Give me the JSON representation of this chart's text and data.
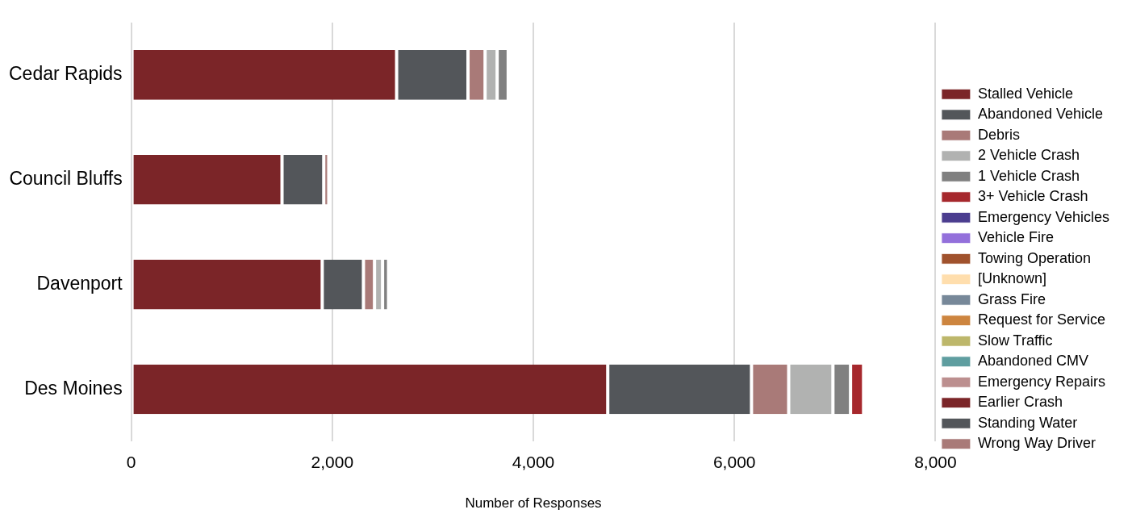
{
  "chart_data": {
    "type": "bar",
    "orientation": "horizontal",
    "stacked": true,
    "xlabel": "Number of Responses",
    "categories": [
      "Cedar Rapids",
      "Council Bluffs",
      "Davenport",
      "Des Moines"
    ],
    "xlim": [
      0,
      8000
    ],
    "xticks": [
      {
        "value": 0,
        "label": "0"
      },
      {
        "value": 2000,
        "label": "2,000"
      },
      {
        "value": 4000,
        "label": "4,000"
      },
      {
        "value": 6000,
        "label": "6,000"
      },
      {
        "value": 8000,
        "label": "8,000"
      }
    ],
    "grid": "x",
    "legend": "right",
    "series": [
      {
        "name": "Stalled Vehicle",
        "color": "#7b2528",
        "values": [
          2640,
          1500,
          1900,
          4740
        ]
      },
      {
        "name": "Abandoned Vehicle",
        "color": "#53565a",
        "values": [
          710,
          415,
          410,
          1430
        ]
      },
      {
        "name": "Debris",
        "color": "#a97a78",
        "values": [
          170,
          50,
          110,
          370
        ]
      },
      {
        "name": "2 Vehicle Crash",
        "color": "#b1b2b1",
        "values": [
          120,
          0,
          80,
          440
        ]
      },
      {
        "name": "1 Vehicle Crash",
        "color": "#808080",
        "values": [
          110,
          0,
          60,
          175
        ]
      },
      {
        "name": "3+ Vehicle Crash",
        "color": "#a6282d",
        "values": [
          0,
          0,
          0,
          130
        ]
      },
      {
        "name": "Emergency Vehicles",
        "color": "#4b3d8f",
        "values": [
          0,
          0,
          0,
          0
        ]
      },
      {
        "name": "Vehicle Fire",
        "color": "#9370db",
        "values": [
          0,
          0,
          0,
          0
        ]
      },
      {
        "name": "Towing Operation",
        "color": "#a0522d",
        "values": [
          0,
          0,
          0,
          0
        ]
      },
      {
        "name": "[Unknown]",
        "color": "#ffdead",
        "values": [
          0,
          0,
          0,
          0
        ]
      },
      {
        "name": "Grass Fire",
        "color": "#778899",
        "values": [
          0,
          0,
          0,
          0
        ]
      },
      {
        "name": "Request for Service",
        "color": "#cd853f",
        "values": [
          0,
          0,
          0,
          0
        ]
      },
      {
        "name": "Slow Traffic",
        "color": "#bdb76b",
        "values": [
          0,
          0,
          0,
          0
        ]
      },
      {
        "name": "Abandoned CMV",
        "color": "#5f9ea0",
        "values": [
          0,
          0,
          0,
          0
        ]
      },
      {
        "name": "Emergency Repairs",
        "color": "#bc8f8f",
        "values": [
          0,
          0,
          0,
          0
        ]
      },
      {
        "name": "Earlier Crash",
        "color": "#7b2528",
        "values": [
          0,
          0,
          0,
          0
        ]
      },
      {
        "name": "Standing Water",
        "color": "#53565a",
        "values": [
          0,
          0,
          0,
          0
        ]
      },
      {
        "name": "Wrong Way Driver",
        "color": "#a97a78",
        "values": [
          0,
          0,
          0,
          0
        ]
      }
    ]
  }
}
